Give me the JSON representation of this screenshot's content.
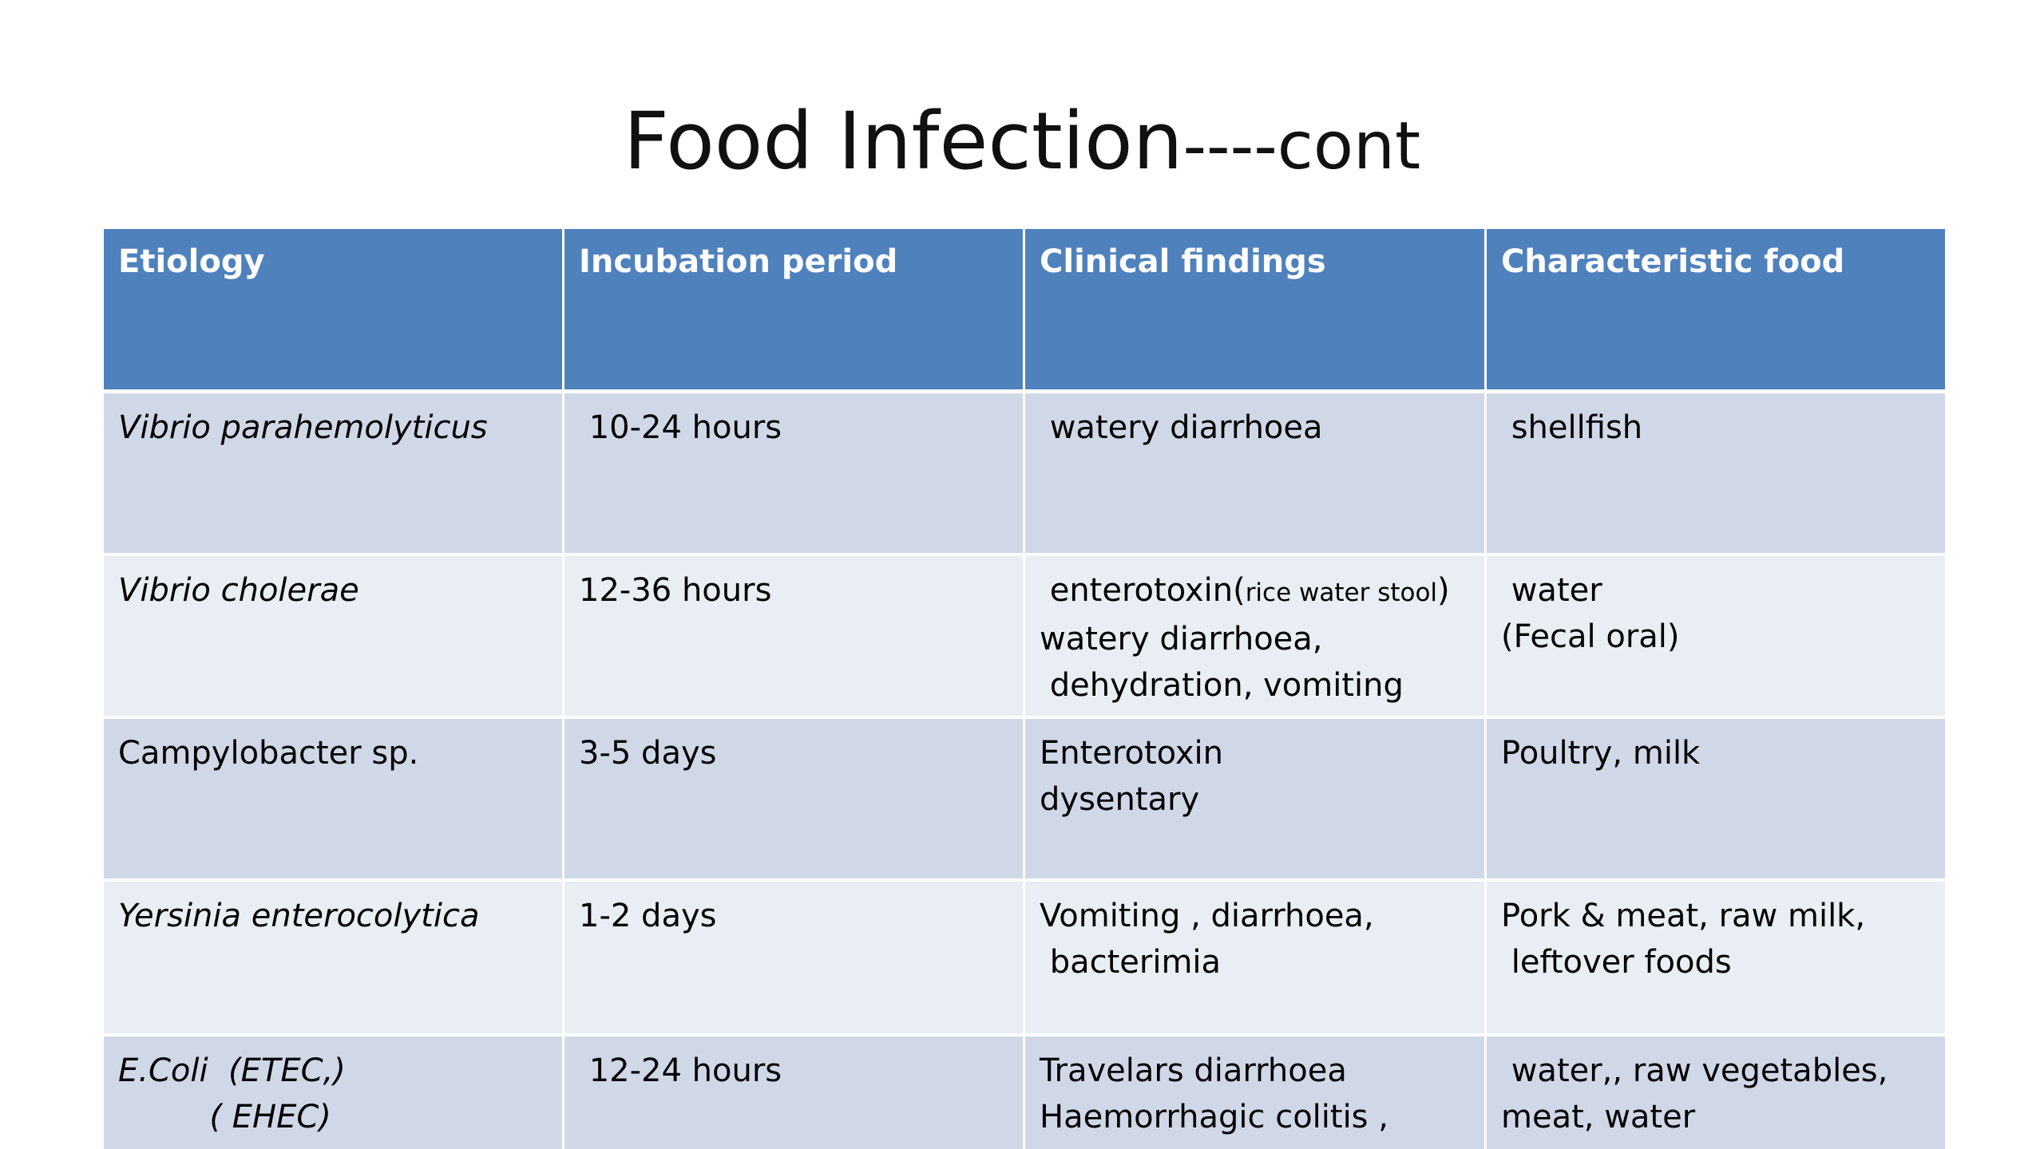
{
  "title": {
    "main": "Food Infection",
    "suffix": "----cont"
  },
  "table": {
    "headers": [
      "Etiology",
      "Incubation period",
      "Clinical findings",
      "Characteristic food"
    ],
    "rows": [
      {
        "etiology": "Vibrio parahemolyticus",
        "incubation": " 10-24 hours",
        "clinical": " watery diarrhoea",
        "food": " shellfish"
      },
      {
        "etiology": "Vibrio cholerae",
        "incubation": "12-36 hours",
        "clinical_line1_main": " enterotoxin(",
        "clinical_line1_small": "rice water stool",
        "clinical_line1_end": ")",
        "clinical_rest": "watery diarrhoea,\n dehydration, vomiting",
        "food": " water\n(Fecal oral)"
      },
      {
        "etiology": "Campylobacter sp.",
        "incubation": "3-5 days",
        "clinical": "Enterotoxin\ndysentary",
        "food": "Poultry, milk"
      },
      {
        "etiology": "Yersinia enterocolytica",
        "incubation": "1-2 days",
        "clinical": "Vomiting , diarrhoea,\n bacterimia",
        "food": "Pork & meat, raw milk,\n leftover foods"
      },
      {
        "etiology": "E.Coli  (ETEC,)\n         ( EHEC)",
        "incubation": " 12-24 hours",
        "clinical": "Travelars diarrhoea\nHaemorrhagic colitis ,\nKidney failure",
        "food": " water,, raw vegetables,\nmeat, water"
      }
    ]
  },
  "colors": {
    "header_bg": "#4f81bd",
    "row_odd_bg": "#d0d8e8",
    "row_even_bg": "#e9edf4",
    "header_text": "#ffffff"
  }
}
